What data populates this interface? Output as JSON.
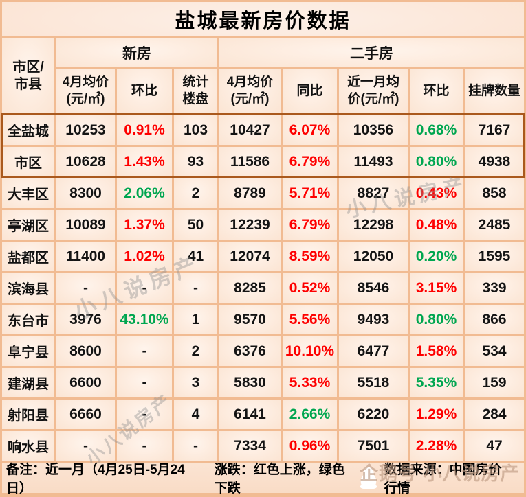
{
  "title": "盐城最新房价数据",
  "chart_data": {
    "type": "table",
    "title": "盐城最新房价数据",
    "corner_header": "市区/\n市县",
    "group_headers": [
      {
        "label": "新房",
        "span": 3
      },
      {
        "label": "二手房",
        "span": 5
      }
    ],
    "columns": [
      "4月均价\n(元/㎡)",
      "环比",
      "统计\n楼盘",
      "4月均价\n(元/㎡)",
      "同比",
      "近一月均\n价(元/㎡)",
      "环比",
      "挂牌数量"
    ],
    "rows": [
      {
        "name": "全盐城",
        "highlight": true,
        "cells": [
          [
            "10253",
            "black"
          ],
          [
            "0.91%",
            "red"
          ],
          [
            "103",
            "black"
          ],
          [
            "10427",
            "black"
          ],
          [
            "6.07%",
            "red"
          ],
          [
            "10356",
            "black"
          ],
          [
            "0.68%",
            "green"
          ],
          [
            "7167",
            "black"
          ]
        ]
      },
      {
        "name": "市区",
        "highlight": true,
        "cells": [
          [
            "10628",
            "black"
          ],
          [
            "1.43%",
            "red"
          ],
          [
            "93",
            "black"
          ],
          [
            "11586",
            "black"
          ],
          [
            "6.79%",
            "red"
          ],
          [
            "11493",
            "black"
          ],
          [
            "0.80%",
            "green"
          ],
          [
            "4938",
            "black"
          ]
        ]
      },
      {
        "name": "大丰区",
        "highlight": false,
        "cells": [
          [
            "8300",
            "black"
          ],
          [
            "2.06%",
            "green"
          ],
          [
            "2",
            "black"
          ],
          [
            "8789",
            "black"
          ],
          [
            "5.71%",
            "red"
          ],
          [
            "8827",
            "black"
          ],
          [
            "0.43%",
            "red"
          ],
          [
            "858",
            "black"
          ]
        ]
      },
      {
        "name": "亭湖区",
        "highlight": false,
        "cells": [
          [
            "10089",
            "black"
          ],
          [
            "1.37%",
            "red"
          ],
          [
            "50",
            "black"
          ],
          [
            "12239",
            "black"
          ],
          [
            "6.79%",
            "red"
          ],
          [
            "12298",
            "black"
          ],
          [
            "0.48%",
            "red"
          ],
          [
            "2485",
            "black"
          ]
        ]
      },
      {
        "name": "盐都区",
        "highlight": false,
        "cells": [
          [
            "11400",
            "black"
          ],
          [
            "1.02%",
            "red"
          ],
          [
            "41",
            "black"
          ],
          [
            "12074",
            "black"
          ],
          [
            "8.59%",
            "red"
          ],
          [
            "12050",
            "black"
          ],
          [
            "0.20%",
            "green"
          ],
          [
            "1595",
            "black"
          ]
        ]
      },
      {
        "name": "滨海县",
        "highlight": false,
        "cells": [
          [
            "-",
            "black"
          ],
          [
            "-",
            "black"
          ],
          [
            "-",
            "black"
          ],
          [
            "8285",
            "black"
          ],
          [
            "0.52%",
            "red"
          ],
          [
            "8546",
            "black"
          ],
          [
            "3.15%",
            "red"
          ],
          [
            "339",
            "black"
          ]
        ]
      },
      {
        "name": "东台市",
        "highlight": false,
        "cells": [
          [
            "3976",
            "black"
          ],
          [
            "43.10%",
            "green"
          ],
          [
            "1",
            "black"
          ],
          [
            "9570",
            "black"
          ],
          [
            "5.56%",
            "red"
          ],
          [
            "9493",
            "black"
          ],
          [
            "0.80%",
            "green"
          ],
          [
            "866",
            "black"
          ]
        ]
      },
      {
        "name": "阜宁县",
        "highlight": false,
        "cells": [
          [
            "8600",
            "black"
          ],
          [
            "-",
            "black"
          ],
          [
            "2",
            "black"
          ],
          [
            "6376",
            "black"
          ],
          [
            "10.10%",
            "red"
          ],
          [
            "6477",
            "black"
          ],
          [
            "1.58%",
            "red"
          ],
          [
            "534",
            "black"
          ]
        ]
      },
      {
        "name": "建湖县",
        "highlight": false,
        "cells": [
          [
            "6600",
            "black"
          ],
          [
            "-",
            "black"
          ],
          [
            "3",
            "black"
          ],
          [
            "5830",
            "black"
          ],
          [
            "5.33%",
            "red"
          ],
          [
            "5518",
            "black"
          ],
          [
            "5.35%",
            "green"
          ],
          [
            "159",
            "black"
          ]
        ]
      },
      {
        "name": "射阳县",
        "highlight": false,
        "cells": [
          [
            "6660",
            "black"
          ],
          [
            "-",
            "black"
          ],
          [
            "4",
            "black"
          ],
          [
            "6141",
            "black"
          ],
          [
            "2.66%",
            "green"
          ],
          [
            "6220",
            "black"
          ],
          [
            "1.29%",
            "red"
          ],
          [
            "284",
            "black"
          ]
        ]
      },
      {
        "name": "响水县",
        "highlight": false,
        "cells": [
          [
            "-",
            "black"
          ],
          [
            "-",
            "black"
          ],
          [
            "-",
            "black"
          ],
          [
            "7334",
            "black"
          ],
          [
            "0.96%",
            "red"
          ],
          [
            "7501",
            "black"
          ],
          [
            "2.28%",
            "red"
          ],
          [
            "47",
            "black"
          ]
        ]
      }
    ],
    "value_colors": {
      "red": "#fe0000",
      "green": "#00a650",
      "black": "#141414"
    },
    "color_meaning": {
      "red": "上涨",
      "green": "下跌"
    }
  },
  "footer": {
    "note": "备注：近一月（4月25日-5月24日）",
    "legend": "涨跌：红色上涨，绿色下跌",
    "source": "数据来源：中国房价行情"
  },
  "watermarks": {
    "wm1": "小八说房产",
    "wm2": "小八说房产",
    "wm3": "小八说房产",
    "wm4": "企鹅号 小八说房产"
  },
  "colors": {
    "grid_line": "#f1bb92",
    "highlight_border": "#aa591d",
    "cell_bg": "#fce7d7",
    "red": "#fe0000",
    "green": "#00a650"
  }
}
